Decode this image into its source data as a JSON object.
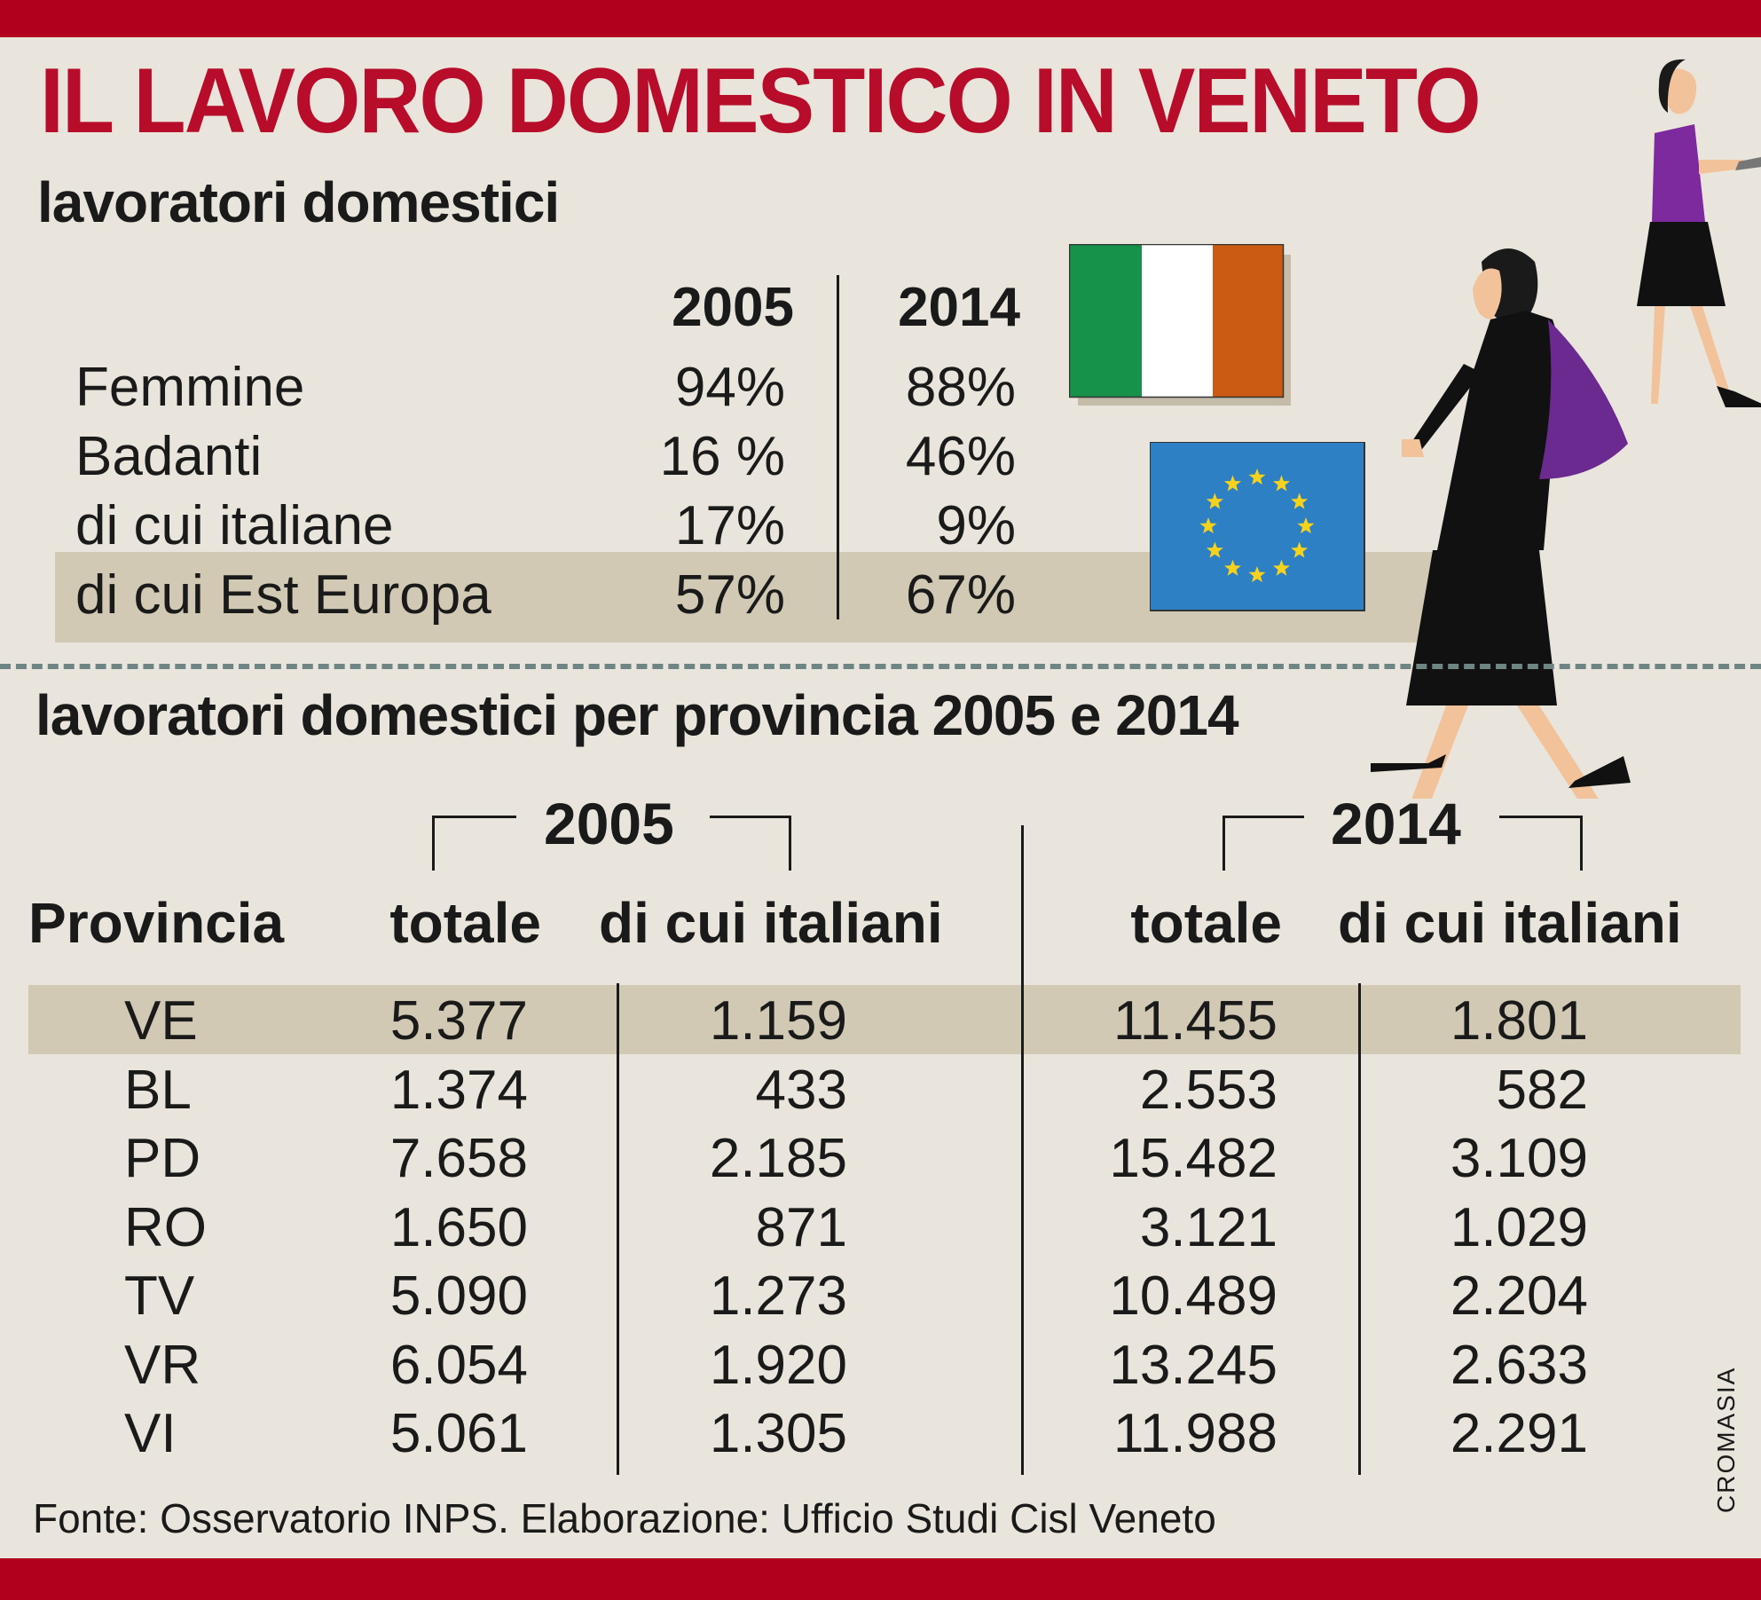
{
  "colors": {
    "accent_red": "#b0001e",
    "title_red": "#b80d2a",
    "highlight_band": "#d1c9b4",
    "background": "#eae5dc"
  },
  "title": "IL LAVORO DOMESTICO IN VENETO",
  "section1": {
    "subtitle": "lavoratori domestici",
    "years": [
      "2005",
      "2014"
    ],
    "rows": [
      {
        "label": "Femmine",
        "v2005": "94%",
        "v2014": "88%"
      },
      {
        "label": "Badanti",
        "v2005": "16 %",
        "v2014": "46%"
      },
      {
        "label": "di cui italiane",
        "v2005": "17%",
        "v2014": "9%"
      },
      {
        "label": "di cui Est Europa",
        "v2005": "57%",
        "v2014": "67%"
      }
    ]
  },
  "section2": {
    "subtitle": "lavoratori domestici per provincia 2005 e 2014",
    "year_a": "2005",
    "year_b": "2014",
    "headers": {
      "provincia": "Provincia",
      "totale": "totale",
      "italiani": "di cui italiani"
    },
    "rows": [
      {
        "prov": "VE",
        "tot05": "5.377",
        "ita05": "1.159",
        "tot14": "11.455",
        "ita14": "1.801"
      },
      {
        "prov": "BL",
        "tot05": "1.374",
        "ita05": "433",
        "tot14": "2.553",
        "ita14": "582"
      },
      {
        "prov": "PD",
        "tot05": "7.658",
        "ita05": "2.185",
        "tot14": "15.482",
        "ita14": "3.109"
      },
      {
        "prov": "RO",
        "tot05": "1.650",
        "ita05": "871",
        "tot14": "3.121",
        "ita14": "1.029"
      },
      {
        "prov": "TV",
        "tot05": "5.090",
        "ita05": "1.273",
        "tot14": "10.489",
        "ita14": "2.204"
      },
      {
        "prov": "VR",
        "tot05": "6.054",
        "ita05": "1.920",
        "tot14": "13.245",
        "ita14": "2.633"
      },
      {
        "prov": "VI",
        "tot05": "5.061",
        "ita05": "1.305",
        "tot14": "11.988",
        "ita14": "2.291"
      }
    ]
  },
  "source": "Fonte: Osservatorio INPS. Elaborazione: Ufficio Studi Cisl Veneto",
  "credit": "CROMASIA",
  "chart_data": [
    {
      "type": "table",
      "title": "lavoratori domestici",
      "columns": [
        "",
        "2005",
        "2014"
      ],
      "rows": [
        [
          "Femmine",
          94,
          88
        ],
        [
          "Badanti",
          16,
          46
        ],
        [
          "di cui italiane",
          17,
          9
        ],
        [
          "di cui Est Europa",
          57,
          67
        ]
      ],
      "unit": "%"
    },
    {
      "type": "table",
      "title": "lavoratori domestici per provincia 2005 e 2014",
      "columns": [
        "Provincia",
        "2005 totale",
        "2005 di cui italiani",
        "2014 totale",
        "2014 di cui italiani"
      ],
      "rows": [
        [
          "VE",
          5377,
          1159,
          11455,
          1801
        ],
        [
          "BL",
          1374,
          433,
          2553,
          582
        ],
        [
          "PD",
          7658,
          2185,
          15482,
          3109
        ],
        [
          "RO",
          1650,
          871,
          3121,
          1029
        ],
        [
          "TV",
          5090,
          1273,
          10489,
          2204
        ],
        [
          "VR",
          6054,
          1920,
          13245,
          2633
        ],
        [
          "VI",
          5061,
          1305,
          11988,
          2291
        ]
      ]
    }
  ]
}
